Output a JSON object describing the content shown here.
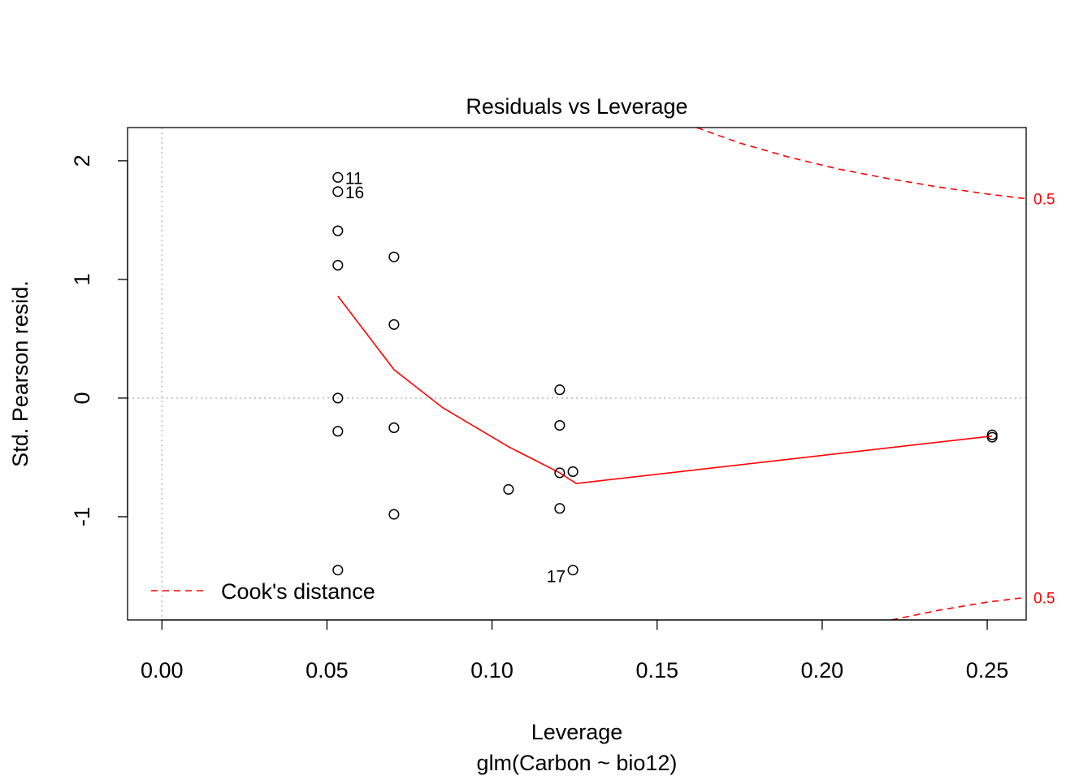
{
  "chart_data": {
    "type": "scatter",
    "title": "Residuals vs Leverage",
    "xlabel": "Leverage",
    "subtitle": "glm(Carbon ~ bio12)",
    "ylabel": "Std. Pearson resid.",
    "xlim": [
      -0.0104,
      0.2618
    ],
    "ylim": [
      -1.87,
      2.28
    ],
    "x_ticks": [
      0.0,
      0.05,
      0.1,
      0.15,
      0.2,
      0.25
    ],
    "x_tick_labels": [
      "0.00",
      "0.05",
      "0.10",
      "0.15",
      "0.20",
      "0.25"
    ],
    "y_ticks": [
      -1,
      0,
      1,
      2
    ],
    "y_tick_labels": [
      "-1",
      "0",
      "1",
      "2"
    ],
    "reference_lines": {
      "x": 0,
      "y": 0,
      "style": "dotted",
      "color": "#bebebe"
    },
    "points": [
      {
        "x": 0.0533,
        "y": 1.86,
        "label": "11"
      },
      {
        "x": 0.0533,
        "y": 1.74,
        "label": "16"
      },
      {
        "x": 0.0533,
        "y": 1.41
      },
      {
        "x": 0.0533,
        "y": 1.12
      },
      {
        "x": 0.0533,
        "y": 0.0
      },
      {
        "x": 0.0533,
        "y": -0.28
      },
      {
        "x": 0.0533,
        "y": -1.45
      },
      {
        "x": 0.0703,
        "y": 1.19
      },
      {
        "x": 0.0703,
        "y": 0.62
      },
      {
        "x": 0.0703,
        "y": -0.25
      },
      {
        "x": 0.0703,
        "y": -0.98
      },
      {
        "x": 0.105,
        "y": -0.77
      },
      {
        "x": 0.1205,
        "y": 0.07
      },
      {
        "x": 0.1205,
        "y": -0.23
      },
      {
        "x": 0.1205,
        "y": -0.63
      },
      {
        "x": 0.1205,
        "y": -0.93
      },
      {
        "x": 0.1245,
        "y": -0.62
      },
      {
        "x": 0.1245,
        "y": -1.45,
        "label": "17"
      },
      {
        "x": 0.2515,
        "y": -0.31
      },
      {
        "x": 0.2515,
        "y": -0.33
      }
    ],
    "smooth_line": {
      "color": "#ff0000",
      "x": [
        0.0533,
        0.0703,
        0.085,
        0.105,
        0.1205,
        0.1255,
        0.2515
      ],
      "y": [
        0.86,
        0.24,
        -0.08,
        -0.41,
        -0.63,
        -0.72,
        -0.32
      ]
    },
    "cooks_distance": {
      "color": "#ff0000",
      "style": "dashed",
      "level_label": "0.5",
      "curves": [
        {
          "x": [
            0.162,
            0.175,
            0.19,
            0.205,
            0.22,
            0.235,
            0.25,
            0.2618
          ],
          "y": [
            2.28,
            2.15,
            2.03,
            1.93,
            1.85,
            1.78,
            1.72,
            1.68
          ]
        },
        {
          "x": [
            0.221,
            0.235,
            0.25,
            0.2618
          ],
          "y": [
            -1.87,
            -1.79,
            -1.72,
            -1.68
          ]
        }
      ],
      "label_y": [
        1.68,
        -1.68
      ]
    },
    "legend": {
      "position": "bottom-left",
      "entries": [
        {
          "label": "Cook's distance",
          "color": "#ff0000",
          "style": "dashed"
        }
      ]
    }
  }
}
